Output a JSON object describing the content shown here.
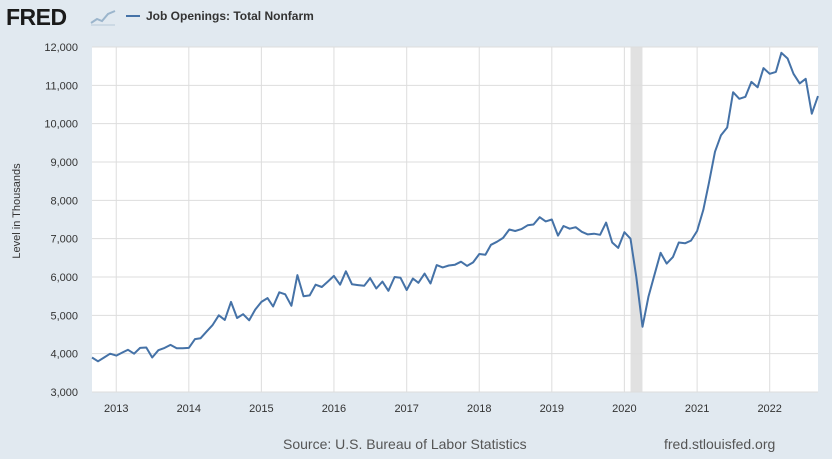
{
  "header": {
    "logo_text": "FRED",
    "logo_icon": "trend-line-icon"
  },
  "footer": {
    "source": "Source: U.S. Bureau of Labor Statistics",
    "site": "fred.stlouisfed.org"
  },
  "colors": {
    "line": "#4572a7",
    "background": "#e1e9f0",
    "plot_area": "#ffffff",
    "recession": "#e1e1e1",
    "grid": "#dddddd"
  },
  "chart_data": {
    "type": "line",
    "ylabel": "Level in Thousands",
    "ylim": [
      3000,
      12000
    ],
    "xlim": [
      "2012-09-01",
      "2022-09-01"
    ],
    "yticks": [
      "3,000",
      "4,000",
      "5,000",
      "6,000",
      "7,000",
      "8,000",
      "9,000",
      "10,000",
      "11,000",
      "12,000"
    ],
    "xticks": [
      "2013",
      "2014",
      "2015",
      "2016",
      "2017",
      "2018",
      "2019",
      "2020",
      "2021",
      "2022"
    ],
    "grid": true,
    "legend_position": "top-left",
    "recession_shading": [
      [
        "2020-02-01",
        "2020-04-01"
      ]
    ],
    "series": [
      {
        "name": "Job Openings: Total Nonfarm",
        "x": [
          "2012-09-01",
          "2012-10-01",
          "2012-11-01",
          "2012-12-01",
          "2013-01-01",
          "2013-02-01",
          "2013-03-01",
          "2013-04-01",
          "2013-05-01",
          "2013-06-01",
          "2013-07-01",
          "2013-08-01",
          "2013-09-01",
          "2013-10-01",
          "2013-11-01",
          "2013-12-01",
          "2014-01-01",
          "2014-02-01",
          "2014-03-01",
          "2014-04-01",
          "2014-05-01",
          "2014-06-01",
          "2014-07-01",
          "2014-08-01",
          "2014-09-01",
          "2014-10-01",
          "2014-11-01",
          "2014-12-01",
          "2015-01-01",
          "2015-02-01",
          "2015-03-01",
          "2015-04-01",
          "2015-05-01",
          "2015-06-01",
          "2015-07-01",
          "2015-08-01",
          "2015-09-01",
          "2015-10-01",
          "2015-11-01",
          "2015-12-01",
          "2016-01-01",
          "2016-02-01",
          "2016-03-01",
          "2016-04-01",
          "2016-05-01",
          "2016-06-01",
          "2016-07-01",
          "2016-08-01",
          "2016-09-01",
          "2016-10-01",
          "2016-11-01",
          "2016-12-01",
          "2017-01-01",
          "2017-02-01",
          "2017-03-01",
          "2017-04-01",
          "2017-05-01",
          "2017-06-01",
          "2017-07-01",
          "2017-08-01",
          "2017-09-01",
          "2017-10-01",
          "2017-11-01",
          "2017-12-01",
          "2018-01-01",
          "2018-02-01",
          "2018-03-01",
          "2018-04-01",
          "2018-05-01",
          "2018-06-01",
          "2018-07-01",
          "2018-08-01",
          "2018-09-01",
          "2018-10-01",
          "2018-11-01",
          "2018-12-01",
          "2019-01-01",
          "2019-02-01",
          "2019-03-01",
          "2019-04-01",
          "2019-05-01",
          "2019-06-01",
          "2019-07-01",
          "2019-08-01",
          "2019-09-01",
          "2019-10-01",
          "2019-11-01",
          "2019-12-01",
          "2020-01-01",
          "2020-02-01",
          "2020-03-01",
          "2020-04-01",
          "2020-05-01",
          "2020-06-01",
          "2020-07-01",
          "2020-08-01",
          "2020-09-01",
          "2020-10-01",
          "2020-11-01",
          "2020-12-01",
          "2021-01-01",
          "2021-02-01",
          "2021-03-01",
          "2021-04-01",
          "2021-05-01",
          "2021-06-01",
          "2021-07-01",
          "2021-08-01",
          "2021-09-01",
          "2021-10-01",
          "2021-11-01",
          "2021-12-01",
          "2022-01-01",
          "2022-02-01",
          "2022-03-01",
          "2022-04-01",
          "2022-05-01",
          "2022-06-01",
          "2022-07-01",
          "2022-08-01",
          "2022-09-01"
        ],
        "values": [
          3900,
          3800,
          3900,
          4000,
          3950,
          4030,
          4100,
          4000,
          4150,
          4160,
          3900,
          4090,
          4150,
          4230,
          4140,
          4140,
          4150,
          4380,
          4400,
          4580,
          4750,
          5000,
          4880,
          5350,
          4930,
          5030,
          4870,
          5150,
          5350,
          5450,
          5230,
          5600,
          5550,
          5250,
          6050,
          5500,
          5520,
          5800,
          5740,
          5880,
          6030,
          5800,
          6150,
          5810,
          5790,
          5770,
          5970,
          5700,
          5880,
          5640,
          6000,
          5980,
          5660,
          5960,
          5850,
          6090,
          5830,
          6310,
          6250,
          6300,
          6320,
          6400,
          6290,
          6380,
          6600,
          6580,
          6840,
          6920,
          7020,
          7240,
          7200,
          7250,
          7350,
          7370,
          7560,
          7450,
          7500,
          7080,
          7330,
          7260,
          7300,
          7180,
          7110,
          7130,
          7100,
          7420,
          6900,
          6760,
          7170,
          7000,
          6000,
          4700,
          5480,
          6070,
          6630,
          6350,
          6520,
          6900,
          6880,
          6950,
          7200,
          7750,
          8450,
          9270,
          9700,
          9900,
          10820,
          10650,
          10700,
          11090,
          10950,
          11450,
          11300,
          11350,
          11850,
          11700,
          11300,
          11050,
          11170,
          10260,
          10720
        ]
      }
    ]
  }
}
